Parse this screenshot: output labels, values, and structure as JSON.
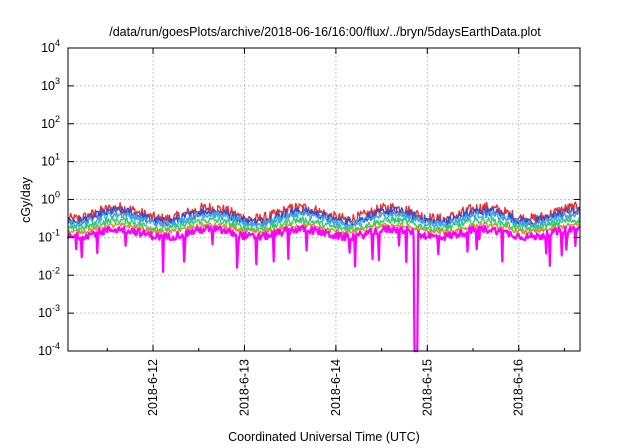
{
  "chart_data": {
    "type": "line",
    "title": "/data/run/goesPlots/archive/2018-06-16/16:00/flux/../bryn/5daysEarthData.plot",
    "xlabel": "Coordinated Universal Time (UTC)",
    "ylabel": "cGy/day",
    "yscale": "log",
    "ylim": [
      0.0001,
      10000
    ],
    "xlim": [
      0,
      5.6
    ],
    "grid": true,
    "y_ticks": [
      {
        "base": "10",
        "exp": "-4"
      },
      {
        "base": "10",
        "exp": "-3"
      },
      {
        "base": "10",
        "exp": "-2"
      },
      {
        "base": "10",
        "exp": "-1"
      },
      {
        "base": "10",
        "exp": "0"
      },
      {
        "base": "10",
        "exp": "1"
      },
      {
        "base": "10",
        "exp": "2"
      },
      {
        "base": "10",
        "exp": "3"
      },
      {
        "base": "10",
        "exp": "4"
      }
    ],
    "x_ticks": [
      {
        "pos": 0.93,
        "label": "2018-6-12"
      },
      {
        "pos": 1.93,
        "label": "2018-6-13"
      },
      {
        "pos": 2.93,
        "label": "2018-6-14"
      },
      {
        "pos": 3.93,
        "label": "2018-6-15"
      },
      {
        "pos": 4.93,
        "label": "2018-6-16"
      }
    ],
    "series": [
      {
        "color": "#e8312f",
        "level": 0.42,
        "amp": 0.3,
        "noise": 0.16
      },
      {
        "color": "#2b4fd8",
        "level": 0.36,
        "amp": 0.28,
        "noise": 0.12
      },
      {
        "color": "#3da6e8",
        "level": 0.3,
        "amp": 0.26,
        "noise": 0.1
      },
      {
        "color": "#2fcf6f",
        "level": 0.22,
        "amp": 0.22,
        "noise": 0.09
      },
      {
        "color": "#c79a2a",
        "level": 0.17,
        "amp": 0.18,
        "noise": 0.07
      },
      {
        "color": "#ff00ff",
        "level": 0.13,
        "amp": 0.2,
        "noise": 0.1
      }
    ],
    "dropout": {
      "x": 3.78,
      "width": 0.04,
      "min": 0.0001
    }
  }
}
